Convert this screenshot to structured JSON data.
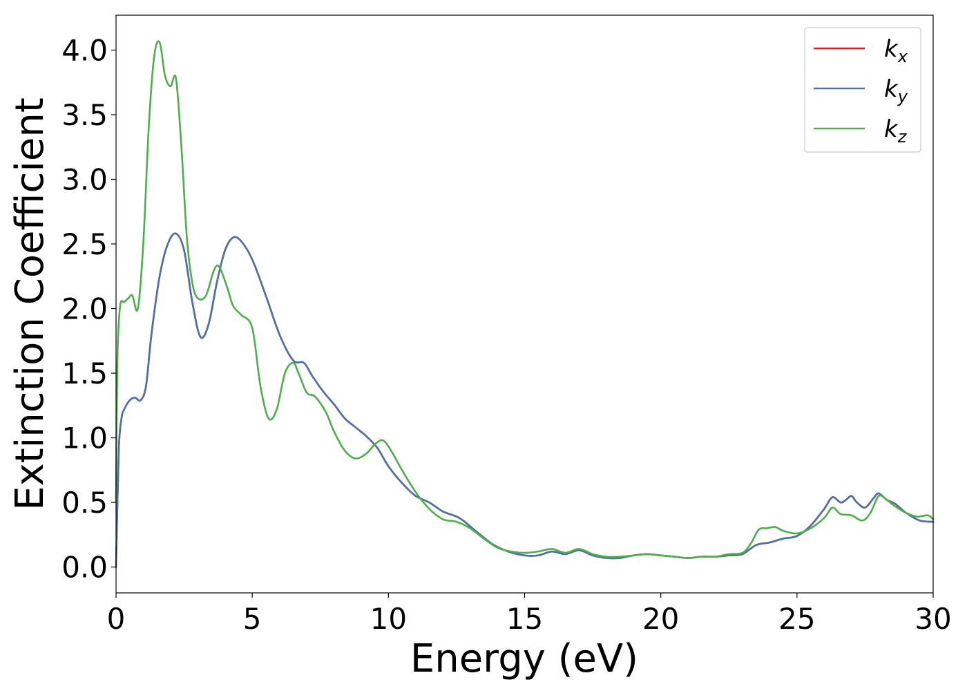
{
  "chart_data": {
    "type": "line",
    "xlabel": "Energy (eV)",
    "ylabel": "Extinction Coefficient",
    "xlim": [
      0,
      30
    ],
    "ylim": [
      -0.2,
      4.27
    ],
    "xticks": [
      0,
      5,
      10,
      15,
      20,
      25,
      30
    ],
    "xtick_labels": [
      "0",
      "5",
      "10",
      "15",
      "20",
      "25",
      "30"
    ],
    "yticks": [
      0,
      0.5,
      1,
      1.5,
      2,
      2.5,
      3,
      3.5,
      4
    ],
    "ytick_labels": [
      "0.0",
      "0.5",
      "1.0",
      "1.5",
      "2.0",
      "2.5",
      "3.0",
      "3.5",
      "4.0"
    ],
    "grid": false,
    "legend_position": "top-right",
    "series": [
      {
        "name": "k_x",
        "legend_base": "k",
        "legend_sub": "x",
        "color": "#e41a1c",
        "x": [
          0,
          0.1,
          0.2,
          0.3,
          0.5,
          0.7,
          0.9,
          1.1,
          1.3,
          1.6,
          1.9,
          2.2,
          2.5,
          2.8,
          3.1,
          3.4,
          3.7,
          4.0,
          4.3,
          4.6,
          5.0,
          5.5,
          6.0,
          6.5,
          6.9,
          7.2,
          7.6,
          8.0,
          8.4,
          8.8,
          9.2,
          9.6,
          10.0,
          10.5,
          11.0,
          11.5,
          12.0,
          12.6,
          13.2,
          13.8,
          14.4,
          15.0,
          15.5,
          16.0,
          16.5,
          17.0,
          17.5,
          18.0,
          18.5,
          19.0,
          19.5,
          20.0,
          20.5,
          21.0,
          21.5,
          22.0,
          22.5,
          23.0,
          23.5,
          24.0,
          24.5,
          25.0,
          25.5,
          26.0,
          26.3,
          26.6,
          26.8,
          27.0,
          27.2,
          27.5,
          27.8,
          28.0,
          28.3,
          28.6,
          29.0,
          29.5,
          30.0
        ],
        "y": [
          0.0,
          0.9,
          1.15,
          1.22,
          1.29,
          1.31,
          1.29,
          1.4,
          1.8,
          2.25,
          2.5,
          2.58,
          2.45,
          2.05,
          1.78,
          1.88,
          2.2,
          2.45,
          2.55,
          2.52,
          2.38,
          2.1,
          1.8,
          1.6,
          1.58,
          1.48,
          1.36,
          1.26,
          1.15,
          1.08,
          1.01,
          0.92,
          0.78,
          0.65,
          0.55,
          0.5,
          0.43,
          0.38,
          0.28,
          0.18,
          0.12,
          0.09,
          0.09,
          0.12,
          0.1,
          0.13,
          0.09,
          0.07,
          0.07,
          0.09,
          0.1,
          0.09,
          0.08,
          0.07,
          0.08,
          0.08,
          0.09,
          0.1,
          0.17,
          0.19,
          0.22,
          0.24,
          0.32,
          0.45,
          0.54,
          0.5,
          0.52,
          0.55,
          0.5,
          0.46,
          0.53,
          0.57,
          0.52,
          0.49,
          0.42,
          0.36,
          0.35
        ]
      },
      {
        "name": "k_y",
        "legend_base": "k",
        "legend_sub": "y",
        "color": "#4a72a8",
        "x": [
          0,
          0.1,
          0.2,
          0.3,
          0.5,
          0.7,
          0.9,
          1.1,
          1.3,
          1.6,
          1.9,
          2.2,
          2.5,
          2.8,
          3.1,
          3.4,
          3.7,
          4.0,
          4.3,
          4.6,
          5.0,
          5.5,
          6.0,
          6.5,
          6.9,
          7.2,
          7.6,
          8.0,
          8.4,
          8.8,
          9.2,
          9.6,
          10.0,
          10.5,
          11.0,
          11.5,
          12.0,
          12.6,
          13.2,
          13.8,
          14.4,
          15.0,
          15.5,
          16.0,
          16.5,
          17.0,
          17.5,
          18.0,
          18.5,
          19.0,
          19.5,
          20.0,
          20.5,
          21.0,
          21.5,
          22.0,
          22.5,
          23.0,
          23.5,
          24.0,
          24.5,
          25.0,
          25.5,
          26.0,
          26.3,
          26.6,
          26.8,
          27.0,
          27.2,
          27.5,
          27.8,
          28.0,
          28.3,
          28.6,
          29.0,
          29.5,
          30.0
        ],
        "y": [
          0.0,
          0.9,
          1.15,
          1.22,
          1.29,
          1.31,
          1.29,
          1.4,
          1.8,
          2.25,
          2.5,
          2.58,
          2.45,
          2.05,
          1.78,
          1.88,
          2.2,
          2.45,
          2.55,
          2.52,
          2.38,
          2.1,
          1.8,
          1.6,
          1.58,
          1.48,
          1.36,
          1.26,
          1.15,
          1.08,
          1.01,
          0.92,
          0.78,
          0.65,
          0.55,
          0.5,
          0.43,
          0.38,
          0.28,
          0.18,
          0.12,
          0.09,
          0.09,
          0.12,
          0.1,
          0.13,
          0.09,
          0.07,
          0.07,
          0.09,
          0.1,
          0.09,
          0.08,
          0.07,
          0.08,
          0.08,
          0.09,
          0.1,
          0.17,
          0.19,
          0.22,
          0.24,
          0.32,
          0.45,
          0.54,
          0.5,
          0.52,
          0.55,
          0.5,
          0.46,
          0.53,
          0.57,
          0.52,
          0.49,
          0.42,
          0.36,
          0.35
        ]
      },
      {
        "name": "k_z",
        "legend_base": "k",
        "legend_sub": "z",
        "color": "#4daf4a",
        "x": [
          0,
          0.05,
          0.15,
          0.3,
          0.45,
          0.6,
          0.8,
          1.0,
          1.2,
          1.4,
          1.6,
          1.8,
          2.0,
          2.2,
          2.4,
          2.6,
          2.8,
          3.0,
          3.3,
          3.6,
          3.8,
          4.1,
          4.3,
          4.6,
          5.0,
          5.3,
          5.6,
          5.9,
          6.2,
          6.5,
          6.7,
          7.0,
          7.3,
          7.7,
          8.0,
          8.4,
          8.8,
          9.2,
          9.5,
          9.8,
          10.1,
          10.5,
          11.0,
          11.5,
          12.0,
          12.5,
          13.0,
          13.5,
          14.0,
          14.5,
          15.0,
          15.5,
          16.0,
          16.5,
          17.0,
          17.5,
          18.0,
          18.5,
          19.0,
          19.5,
          20.0,
          20.5,
          21.0,
          21.5,
          22.0,
          22.5,
          23.0,
          23.3,
          23.6,
          23.9,
          24.2,
          24.5,
          25.0,
          25.5,
          26.0,
          26.3,
          26.6,
          27.0,
          27.4,
          27.7,
          28.0,
          28.3,
          28.6,
          29.0,
          29.4,
          29.8,
          30.0
        ],
        "y": [
          0.5,
          1.6,
          2.02,
          2.05,
          2.08,
          2.1,
          2.0,
          2.5,
          3.4,
          3.95,
          4.06,
          3.8,
          3.72,
          3.78,
          3.25,
          2.55,
          2.2,
          2.08,
          2.1,
          2.3,
          2.32,
          2.15,
          2.02,
          1.95,
          1.85,
          1.4,
          1.15,
          1.22,
          1.5,
          1.58,
          1.5,
          1.35,
          1.32,
          1.2,
          1.05,
          0.9,
          0.84,
          0.88,
          0.95,
          0.98,
          0.9,
          0.75,
          0.58,
          0.45,
          0.37,
          0.35,
          0.3,
          0.22,
          0.15,
          0.12,
          0.11,
          0.12,
          0.14,
          0.11,
          0.14,
          0.1,
          0.08,
          0.08,
          0.09,
          0.1,
          0.09,
          0.08,
          0.07,
          0.08,
          0.08,
          0.1,
          0.11,
          0.18,
          0.29,
          0.3,
          0.31,
          0.28,
          0.26,
          0.3,
          0.38,
          0.46,
          0.41,
          0.4,
          0.36,
          0.42,
          0.55,
          0.52,
          0.47,
          0.42,
          0.39,
          0.4,
          0.37
        ]
      }
    ]
  }
}
